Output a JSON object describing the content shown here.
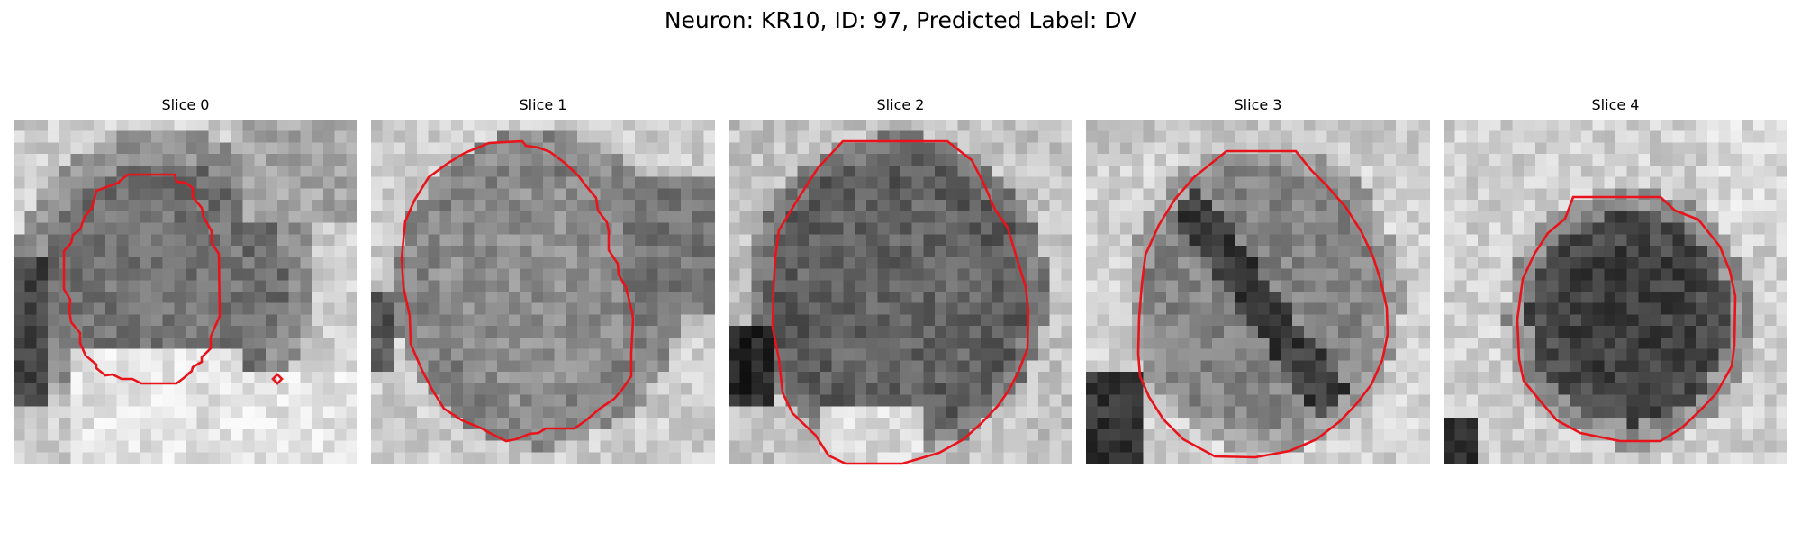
{
  "figure": {
    "title": "Neuron: KR10, ID: 97, Predicted Label: DV"
  },
  "style": {
    "contour_color": "#e8141c",
    "background": "#ffffff"
  },
  "panels": [
    {
      "title": "Slice 0",
      "contour_shape": "irregular-ring-with-small-diamond",
      "image_content": "grayscale pixel-block microscopy; dark ring around lighter interior; bright white region lower right"
    },
    {
      "title": "Slice 1",
      "contour_shape": "large-roundish",
      "image_content": "grayscale pixel-block microscopy; noisy medium-gray cell body on light background"
    },
    {
      "title": "Slice 2",
      "contour_shape": "octagon-like",
      "image_content": "grayscale pixel-block microscopy; dark round cell body with dark blob lower left"
    },
    {
      "title": "Slice 3",
      "contour_shape": "octagon-like",
      "image_content": "grayscale pixel-block microscopy; dark diagonal band inside cell; dark corner lower left"
    },
    {
      "title": "Slice 4",
      "contour_shape": "smaller-octagon",
      "image_content": "grayscale pixel-block microscopy; very dark compact cell on light background"
    }
  ]
}
